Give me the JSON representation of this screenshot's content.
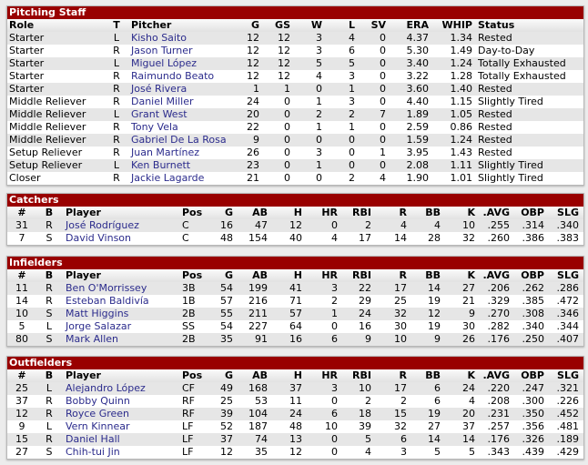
{
  "pitching": {
    "title": "Pitching Staff",
    "columns": [
      "Role",
      "T",
      "Pitcher",
      "G",
      "GS",
      "W",
      "L",
      "SV",
      "ERA",
      "WHIP",
      "Status"
    ],
    "rows": [
      [
        "Starter",
        "L",
        "Kisho Saito",
        "12",
        "12",
        "3",
        "4",
        "0",
        "4.37",
        "1.34",
        "Rested"
      ],
      [
        "Starter",
        "R",
        "Jason Turner",
        "12",
        "12",
        "3",
        "6",
        "0",
        "5.30",
        "1.49",
        "Day-to-Day"
      ],
      [
        "Starter",
        "L",
        "Miguel López",
        "12",
        "12",
        "5",
        "5",
        "0",
        "3.40",
        "1.24",
        "Totally Exhausted"
      ],
      [
        "Starter",
        "R",
        "Raimundo Beato",
        "12",
        "12",
        "4",
        "3",
        "0",
        "3.22",
        "1.28",
        "Totally Exhausted"
      ],
      [
        "Starter",
        "R",
        "José Rivera",
        "1",
        "1",
        "0",
        "1",
        "0",
        "3.60",
        "1.40",
        "Rested"
      ],
      [
        "Middle Reliever",
        "R",
        "Daniel Miller",
        "24",
        "0",
        "1",
        "3",
        "0",
        "4.40",
        "1.15",
        "Slightly Tired"
      ],
      [
        "Middle Reliever",
        "L",
        "Grant West",
        "20",
        "0",
        "2",
        "2",
        "7",
        "1.89",
        "1.05",
        "Rested"
      ],
      [
        "Middle Reliever",
        "R",
        "Tony Vela",
        "22",
        "0",
        "1",
        "1",
        "0",
        "2.59",
        "0.86",
        "Rested"
      ],
      [
        "Middle Reliever",
        "R",
        "Gabriel De La Rosa",
        "9",
        "0",
        "0",
        "0",
        "0",
        "1.59",
        "1.24",
        "Rested"
      ],
      [
        "Setup Reliever",
        "R",
        "Juan Martínez",
        "26",
        "0",
        "3",
        "0",
        "1",
        "3.95",
        "1.43",
        "Rested"
      ],
      [
        "Setup Reliever",
        "L",
        "Ken Burnett",
        "23",
        "0",
        "1",
        "0",
        "0",
        "2.08",
        "1.11",
        "Slightly Tired"
      ],
      [
        "Closer",
        "R",
        "Jackie Lagarde",
        "21",
        "0",
        "0",
        "2",
        "4",
        "1.90",
        "1.01",
        "Slightly Tired"
      ]
    ]
  },
  "batting_columns": [
    "#",
    "B",
    "Player",
    "Pos",
    "G",
    "AB",
    "H",
    "HR",
    "RBI",
    "R",
    "BB",
    "K",
    ".AVG",
    "OBP",
    "SLG"
  ],
  "catchers": {
    "title": "Catchers",
    "rows": [
      [
        "31",
        "R",
        "José Rodríguez",
        "C",
        "16",
        "47",
        "12",
        "0",
        "2",
        "4",
        "4",
        "10",
        ".255",
        ".314",
        ".340"
      ],
      [
        "7",
        "S",
        "David Vinson",
        "C",
        "48",
        "154",
        "40",
        "4",
        "17",
        "14",
        "28",
        "32",
        ".260",
        ".386",
        ".383"
      ]
    ]
  },
  "infielders": {
    "title": "Infielders",
    "rows": [
      [
        "11",
        "R",
        "Ben O'Morrissey",
        "3B",
        "54",
        "199",
        "41",
        "3",
        "22",
        "17",
        "14",
        "27",
        ".206",
        ".262",
        ".286"
      ],
      [
        "14",
        "R",
        "Esteban Baldivía",
        "1B",
        "57",
        "216",
        "71",
        "2",
        "29",
        "25",
        "19",
        "21",
        ".329",
        ".385",
        ".472"
      ],
      [
        "10",
        "S",
        "Matt Higgins",
        "2B",
        "55",
        "211",
        "57",
        "1",
        "24",
        "32",
        "12",
        "9",
        ".270",
        ".308",
        ".346"
      ],
      [
        "5",
        "L",
        "Jorge Salazar",
        "SS",
        "54",
        "227",
        "64",
        "0",
        "16",
        "30",
        "19",
        "30",
        ".282",
        ".340",
        ".344"
      ],
      [
        "80",
        "S",
        "Mark Allen",
        "2B",
        "35",
        "91",
        "16",
        "6",
        "9",
        "10",
        "9",
        "26",
        ".176",
        ".250",
        ".407"
      ]
    ]
  },
  "outfielders": {
    "title": "Outfielders",
    "rows": [
      [
        "25",
        "L",
        "Alejandro López",
        "CF",
        "49",
        "168",
        "37",
        "3",
        "10",
        "17",
        "6",
        "24",
        ".220",
        ".247",
        ".321"
      ],
      [
        "37",
        "R",
        "Bobby Quinn",
        "RF",
        "25",
        "53",
        "11",
        "0",
        "2",
        "2",
        "6",
        "4",
        ".208",
        ".300",
        ".226"
      ],
      [
        "12",
        "R",
        "Royce Green",
        "RF",
        "39",
        "104",
        "24",
        "6",
        "18",
        "15",
        "19",
        "20",
        ".231",
        ".350",
        ".452"
      ],
      [
        "9",
        "L",
        "Vern Kinnear",
        "LF",
        "52",
        "187",
        "48",
        "10",
        "39",
        "32",
        "27",
        "37",
        ".257",
        ".356",
        ".481"
      ],
      [
        "15",
        "R",
        "Daniel Hall",
        "LF",
        "37",
        "74",
        "13",
        "0",
        "5",
        "6",
        "14",
        "14",
        ".176",
        ".326",
        ".189"
      ],
      [
        "27",
        "S",
        "Chih-tui Jin",
        "LF",
        "12",
        "35",
        "12",
        "0",
        "4",
        "3",
        "5",
        "5",
        ".343",
        ".439",
        ".429"
      ]
    ]
  },
  "colors": {
    "header_bar": "#990000",
    "link": "#2b2b8c"
  }
}
